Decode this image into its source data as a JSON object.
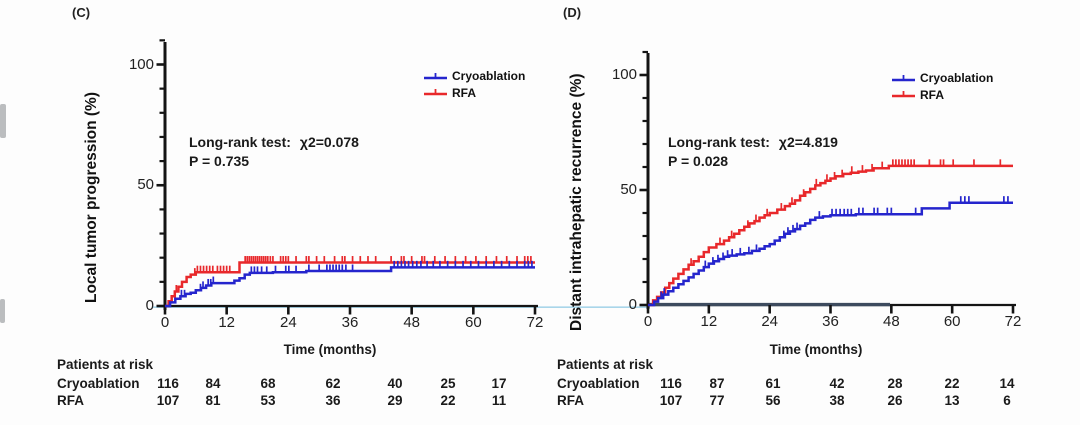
{
  "colors": {
    "cryoablation": "#2525cd",
    "rfa": "#e8282b",
    "baseline_highlight": "#a9d6ea",
    "axis": "#141414",
    "risk_axis_overlay": "#3d4b5e"
  },
  "chart_data": [
    {
      "id": "C",
      "panel_label": "(C)",
      "type": "line",
      "subtype": "kaplan-meier-step",
      "ylabel": "Local tumor progression (%)",
      "xlabel": "Time (months)",
      "xlim": [
        0,
        72
      ],
      "ylim": [
        0,
        110
      ],
      "xticks": [
        0,
        12,
        24,
        36,
        48,
        60,
        72
      ],
      "yticks": [
        0,
        50,
        100
      ],
      "grid": false,
      "legend_position": "upper-right",
      "legend_order": [
        "Cryoablation",
        "RFA"
      ],
      "stats": {
        "test_label": "Long-rank test:",
        "chi_label": "χ2=0.078",
        "p_label": "P = 0.735"
      },
      "series": [
        {
          "name": "RFA",
          "color_key": "rfa",
          "steps": [
            [
              0,
              0
            ],
            [
              0.7,
              2
            ],
            [
              1.3,
              4
            ],
            [
              1.9,
              6
            ],
            [
              2.6,
              8
            ],
            [
              3.3,
              10
            ],
            [
              4.2,
              12
            ],
            [
              5,
              13
            ],
            [
              6,
              14
            ],
            [
              14.5,
              18
            ]
          ],
          "censor_months": [
            2.2,
            5.8,
            6.3,
            6.9,
            7.5,
            8.1,
            8.7,
            9.3,
            10.2,
            10.8,
            11.4,
            12,
            12.6,
            15.6,
            16,
            16.4,
            16.8,
            17.2,
            17.6,
            18,
            18.4,
            18.8,
            19.2,
            19.6,
            20,
            20.5,
            21,
            22.5,
            23,
            23.5,
            24,
            25.5,
            27.5,
            28,
            29.5,
            31,
            33,
            34.5,
            35,
            36.5,
            38,
            39.5,
            41,
            44,
            46,
            46.5,
            48,
            50,
            50.5,
            52.5,
            54.5,
            56.5,
            58.5,
            60.5,
            62.5,
            64.5,
            66.5,
            68.5,
            70,
            70.6,
            71.2
          ]
        },
        {
          "name": "Cryoablation",
          "color_key": "cryoablation",
          "steps": [
            [
              0,
              0
            ],
            [
              1,
              1.5
            ],
            [
              2,
              3
            ],
            [
              3,
              4
            ],
            [
              4,
              5
            ],
            [
              5,
              5.5
            ],
            [
              6,
              6.5
            ],
            [
              7,
              7.5
            ],
            [
              8,
              8.5
            ],
            [
              9,
              9.5
            ],
            [
              13.5,
              10.5
            ],
            [
              14.5,
              11.5
            ],
            [
              15.5,
              13
            ],
            [
              16.5,
              13.7
            ],
            [
              21,
              14
            ],
            [
              27.5,
              14.5
            ],
            [
              44,
              16
            ]
          ],
          "censor_months": [
            3.2,
            3.8,
            6.9,
            7.4,
            8.4,
            8.9,
            9.4,
            16.8,
            17.4,
            18,
            18.8,
            19.8,
            21.5,
            23.5,
            24.1,
            25.5,
            28,
            30,
            31.5,
            32.1,
            32.7,
            33.3,
            33.9,
            34.5,
            35.2,
            36.5,
            44.6,
            45.3,
            46,
            46.7,
            47.4,
            48.2,
            49,
            49.8,
            51,
            52.2,
            53.5,
            55,
            56.5,
            58,
            59.5,
            61,
            62.5,
            64,
            65.5,
            67,
            68.5,
            70,
            70.7,
            71.4
          ]
        }
      ],
      "at_risk": {
        "title": "Patients at risk",
        "rows": [
          {
            "label": "Cryoablation",
            "counts": [
              116,
              84,
              68,
              62,
              40,
              25,
              17
            ]
          },
          {
            "label": "RFA",
            "counts": [
              107,
              81,
              53,
              36,
              29,
              22,
              11
            ]
          }
        ]
      }
    },
    {
      "id": "D",
      "panel_label": "(D)",
      "type": "line",
      "subtype": "kaplan-meier-step",
      "ylabel": "Distant intrahepatic recurrence (%)",
      "xlabel": "Time (months)",
      "xlim": [
        0,
        72
      ],
      "ylim": [
        0,
        110
      ],
      "xticks": [
        0,
        12,
        24,
        36,
        48,
        60,
        72
      ],
      "yticks": [
        0,
        50,
        100
      ],
      "grid": false,
      "legend_position": "upper-right",
      "legend_order": [
        "Cryoablation",
        "RFA"
      ],
      "stats": {
        "test_label": "Long-rank test:",
        "chi_label": "χ2=4.819",
        "p_label": "P = 0.028"
      },
      "series": [
        {
          "name": "RFA",
          "color_key": "rfa",
          "steps": [
            [
              0,
              0
            ],
            [
              1,
              2
            ],
            [
              1.8,
              3.5
            ],
            [
              2.6,
              5.5
            ],
            [
              3.4,
              7.5
            ],
            [
              4.2,
              9.5
            ],
            [
              5,
              11.5
            ],
            [
              6,
              13.5
            ],
            [
              7,
              15.5
            ],
            [
              8,
              17.5
            ],
            [
              9,
              19
            ],
            [
              10,
              21
            ],
            [
              11,
              23
            ],
            [
              12,
              25
            ],
            [
              13.5,
              26.5
            ],
            [
              15,
              28
            ],
            [
              16,
              29.5
            ],
            [
              17,
              31
            ],
            [
              18,
              32.5
            ],
            [
              19,
              34
            ],
            [
              20,
              35.5
            ],
            [
              21,
              36.5
            ],
            [
              22,
              38
            ],
            [
              23,
              39
            ],
            [
              24,
              40
            ],
            [
              25.5,
              41.5
            ],
            [
              27,
              43
            ],
            [
              28,
              44
            ],
            [
              29,
              45.5
            ],
            [
              30,
              47.5
            ],
            [
              31,
              49
            ],
            [
              32,
              50.5
            ],
            [
              33,
              52
            ],
            [
              34,
              53
            ],
            [
              35,
              54
            ],
            [
              36,
              55
            ],
            [
              37,
              56
            ],
            [
              38.5,
              57
            ],
            [
              40,
              57.5
            ],
            [
              41.5,
              58
            ],
            [
              43,
              58.5
            ],
            [
              44.5,
              59.5
            ],
            [
              47.5,
              60.5
            ]
          ],
          "censor_months": [
            8.5,
            14.2,
            16.5,
            19.7,
            21.3,
            23.5,
            26.3,
            28.4,
            30.7,
            33.2,
            35.3,
            36.8,
            38.3,
            40.2,
            42.3,
            44.2,
            46.2,
            48.3,
            48.9,
            49.5,
            50.1,
            50.7,
            51.3,
            51.9,
            52.5,
            55.5,
            57.7,
            58.3,
            60.2,
            64.3,
            69.5
          ]
        },
        {
          "name": "Cryoablation",
          "color_key": "cryoablation",
          "steps": [
            [
              0,
              0
            ],
            [
              1.2,
              1.5
            ],
            [
              2,
              3
            ],
            [
              3,
              4.5
            ],
            [
              4,
              6
            ],
            [
              5,
              7.5
            ],
            [
              6,
              9
            ],
            [
              7,
              10.5
            ],
            [
              8,
              12
            ],
            [
              9,
              13.5
            ],
            [
              10,
              15
            ],
            [
              11,
              16.5
            ],
            [
              12,
              18
            ],
            [
              13,
              19
            ],
            [
              14,
              20
            ],
            [
              15,
              21
            ],
            [
              16,
              21.5
            ],
            [
              17.5,
              22
            ],
            [
              19,
              22.5
            ],
            [
              20.5,
              23.5
            ],
            [
              22,
              24.5
            ],
            [
              23,
              25.5
            ],
            [
              24,
              26.5
            ],
            [
              25,
              28
            ],
            [
              26,
              29.5
            ],
            [
              27,
              31
            ],
            [
              28,
              32
            ],
            [
              29,
              33
            ],
            [
              30,
              34.5
            ],
            [
              31,
              35.5
            ],
            [
              32,
              37
            ],
            [
              33,
              38
            ],
            [
              34.5,
              38.5
            ],
            [
              36,
              39
            ],
            [
              41,
              39.5
            ],
            [
              54,
              42
            ],
            [
              59.5,
              44.5
            ]
          ],
          "censor_months": [
            2.6,
            3.2,
            11.3,
            12.8,
            13.8,
            14.8,
            15.7,
            16.6,
            18.2,
            19.9,
            21.4,
            26.8,
            27.6,
            28.6,
            29.4,
            33.8,
            36.3,
            37.1,
            37.9,
            38.7,
            39.4,
            40.1,
            41.6,
            42.4,
            44.6,
            45.3,
            47.2,
            48,
            52.8,
            61.7,
            62.5,
            63.3,
            70.2,
            71
          ]
        }
      ],
      "at_risk": {
        "title": "Patients at risk",
        "rows": [
          {
            "label": "Cryoablation",
            "counts": [
              116,
              87,
              61,
              42,
              28,
              22,
              14
            ]
          },
          {
            "label": "RFA",
            "counts": [
              107,
              77,
              56,
              38,
              26,
              13,
              6
            ]
          }
        ]
      }
    }
  ]
}
